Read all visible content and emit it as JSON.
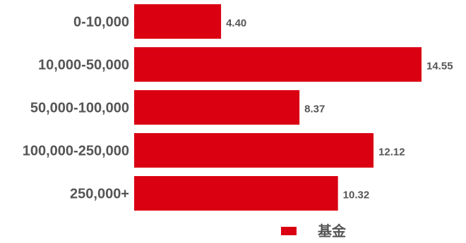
{
  "chart_data": {
    "type": "bar",
    "orientation": "horizontal",
    "categories": [
      "0-10,000",
      "10,000-50,000",
      "50,000-100,000",
      "100,000-250,000",
      "250,000+"
    ],
    "series": [
      {
        "name": "基金",
        "values": [
          4.4,
          14.55,
          8.37,
          12.12,
          10.32
        ],
        "value_labels": [
          "4.40",
          "14.55",
          "8.37",
          "12.12",
          "10.32"
        ]
      }
    ],
    "title": "",
    "xlabel": "",
    "ylabel": "",
    "xlim": [
      0,
      14.55
    ],
    "grid": false,
    "legend": "bottom"
  },
  "colors": {
    "bar": "#DA0012",
    "text": "#555555"
  }
}
